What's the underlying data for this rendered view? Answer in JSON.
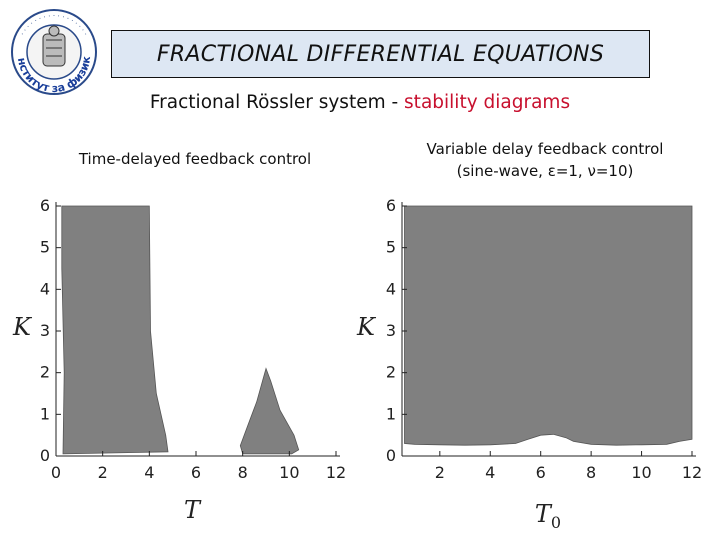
{
  "header": {
    "title": "FRACTIONAL DIFFERENTIAL EQUATIONS",
    "subtitle_prefix": "Fractional Rössler system - ",
    "subtitle_highlight": "stability diagrams",
    "highlight_color": "#c8102e",
    "title_bg": "#dde7f3"
  },
  "logo": {
    "icon": "institute-seal-icon",
    "text": "Институт за физика"
  },
  "panels": [
    {
      "caption_lines": [
        "Time-delayed feedback control"
      ]
    },
    {
      "caption_lines": [
        "Variable delay feedback control",
        "(sine-wave, ε=1, ν=10)"
      ]
    }
  ],
  "chart_data": [
    {
      "type": "region",
      "xlabel": "T",
      "ylabel": "K",
      "xticks": [
        "0",
        "2",
        "4",
        "6",
        "8",
        "10",
        "12"
      ],
      "yticks": [
        "0",
        "1",
        "2",
        "3",
        "4",
        "5",
        "6"
      ],
      "xlim": [
        0,
        12
      ],
      "ylim": [
        0,
        6
      ],
      "fill_color": "#808080",
      "regions": [
        {
          "points": [
            [
              0.25,
              6.0
            ],
            [
              4.0,
              6.0
            ],
            [
              4.05,
              3.0
            ],
            [
              4.3,
              1.5
            ],
            [
              4.7,
              0.5
            ],
            [
              4.8,
              0.1
            ],
            [
              0.3,
              0.05
            ],
            [
              0.35,
              2.0
            ],
            [
              0.25,
              4.5
            ]
          ]
        },
        {
          "points": [
            [
              9.0,
              2.1
            ],
            [
              9.2,
              1.8
            ],
            [
              9.6,
              1.1
            ],
            [
              10.2,
              0.5
            ],
            [
              10.4,
              0.15
            ],
            [
              10.1,
              0.05
            ],
            [
              8.0,
              0.05
            ],
            [
              7.9,
              0.25
            ],
            [
              8.2,
              0.7
            ],
            [
              8.6,
              1.3
            ],
            [
              8.85,
              1.8
            ]
          ]
        }
      ]
    },
    {
      "type": "region",
      "xlabel": "T0",
      "ylabel": "K",
      "xticks": [
        "2",
        "4",
        "6",
        "8",
        "10",
        "12"
      ],
      "yticks": [
        "0",
        "1",
        "2",
        "3",
        "4",
        "5",
        "6"
      ],
      "xlim": [
        0.5,
        12
      ],
      "ylim": [
        0,
        6
      ],
      "fill_color": "#808080",
      "regions": [
        {
          "points": [
            [
              0.6,
              6.0
            ],
            [
              12.0,
              6.0
            ],
            [
              12.0,
              0.4
            ],
            [
              11.5,
              0.35
            ],
            [
              11.0,
              0.28
            ],
            [
              10.0,
              0.27
            ],
            [
              9.0,
              0.26
            ],
            [
              8.0,
              0.28
            ],
            [
              7.3,
              0.35
            ],
            [
              7.0,
              0.44
            ],
            [
              6.5,
              0.52
            ],
            [
              6.0,
              0.5
            ],
            [
              5.5,
              0.4
            ],
            [
              5.0,
              0.3
            ],
            [
              4.0,
              0.27
            ],
            [
              3.0,
              0.26
            ],
            [
              2.0,
              0.27
            ],
            [
              1.0,
              0.28
            ],
            [
              0.6,
              0.3
            ]
          ]
        }
      ]
    }
  ]
}
